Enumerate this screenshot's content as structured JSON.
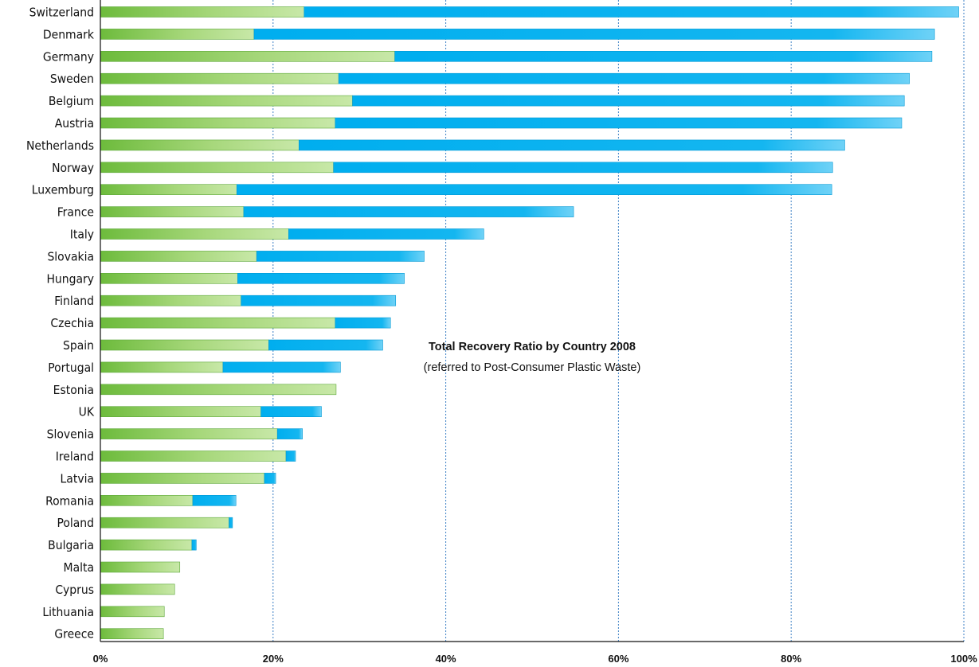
{
  "chart_data": {
    "type": "bar",
    "orientation": "horizontal",
    "stacked": true,
    "title": "Total Recovery Ratio by Country 2008",
    "subtitle": "(referred to Post-Consumer Plastic Waste)",
    "categories": [
      "Switzerland",
      "Denmark",
      "Germany",
      "Sweden",
      "Belgium",
      "Austria",
      "Netherlands",
      "Norway",
      "Luxemburg",
      "France",
      "Italy",
      "Slovakia",
      "Hungary",
      "Finland",
      "Czechia",
      "Spain",
      "Portugal",
      "Estonia",
      "UK",
      "Slovenia",
      "Ireland",
      "Latvia",
      "Romania",
      "Poland",
      "Bulgaria",
      "Malta",
      "Cyprus",
      "Lithuania",
      "Greece"
    ],
    "series": [
      {
        "color": "#7dc24b",
        "values": [
          23.6,
          17.8,
          34.1,
          27.6,
          29.2,
          27.2,
          23.0,
          27.0,
          15.8,
          16.6,
          21.8,
          18.1,
          15.9,
          16.3,
          27.2,
          19.5,
          14.2,
          27.3,
          18.6,
          20.5,
          21.5,
          19.0,
          10.7,
          14.9,
          10.6,
          9.2,
          8.6,
          7.4,
          7.3
        ]
      },
      {
        "color": "#00aeef",
        "values": [
          75.8,
          78.8,
          62.2,
          66.1,
          63.9,
          65.6,
          63.2,
          57.8,
          68.9,
          38.2,
          22.6,
          19.4,
          19.3,
          17.9,
          6.4,
          13.2,
          13.6,
          0,
          7.0,
          2.9,
          1.1,
          1.3,
          5.0,
          0.4,
          0.5,
          0,
          0,
          0,
          0
        ]
      }
    ],
    "xlim": [
      0,
      100
    ],
    "x_ticks": [
      "0%",
      "20%",
      "40%",
      "60%",
      "80%",
      "100%"
    ],
    "grid": {
      "vertical": true,
      "style": "dotted"
    },
    "colors": {
      "recycling": "#7dc24b",
      "energy_recovery": "#00aeef",
      "grid": "#3b7fc4"
    }
  }
}
